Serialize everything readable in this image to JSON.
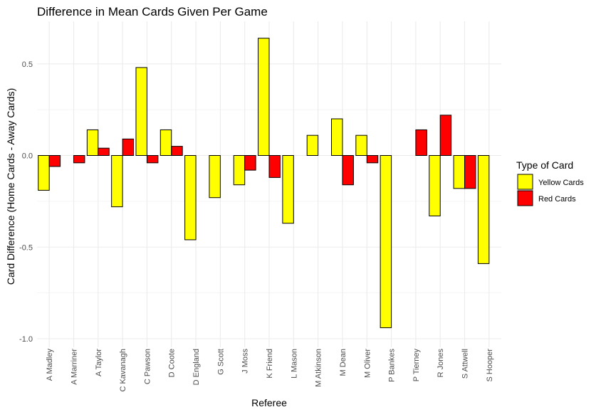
{
  "chart_data": {
    "type": "bar",
    "title": "Difference in Mean Cards Given Per Game",
    "xlabel": "Referee",
    "ylabel": "Card Difference (Home Cards - Away Cards)",
    "ylim": [
      -1.0,
      0.7
    ],
    "yticks": [
      -1.0,
      -0.5,
      0.0,
      0.5
    ],
    "ytick_labels": [
      "-1.0",
      "-0.5",
      "0.0",
      "0.5"
    ],
    "grid": true,
    "legend": {
      "title": "Type of Card",
      "position": "right"
    },
    "categories": [
      "A Madley",
      "A Marriner",
      "A Taylor",
      "C Kavanagh",
      "C Pawson",
      "D Coote",
      "D England",
      "G Scott",
      "J Moss",
      "K Friend",
      "L Mason",
      "M Atkinson",
      "M Dean",
      "M Oliver",
      "P Bankes",
      "P Tierney",
      "R Jones",
      "S Attwell",
      "S Hooper"
    ],
    "series": [
      {
        "name": "Yellow Cards",
        "color": "#ffff00",
        "values": [
          -0.19,
          0.0,
          0.14,
          -0.28,
          0.48,
          0.14,
          -0.46,
          -0.23,
          -0.16,
          0.64,
          -0.37,
          0.11,
          0.2,
          0.11,
          -0.94,
          0.0,
          -0.33,
          -0.18,
          -0.59
        ]
      },
      {
        "name": "Red Cards",
        "color": "#ff0000",
        "values": [
          -0.06,
          -0.04,
          0.04,
          0.09,
          -0.04,
          0.05,
          0.0,
          0.0,
          -0.08,
          -0.12,
          0.0,
          0.0,
          -0.16,
          -0.04,
          0.0,
          0.14,
          0.22,
          -0.18,
          0.0
        ]
      }
    ]
  }
}
